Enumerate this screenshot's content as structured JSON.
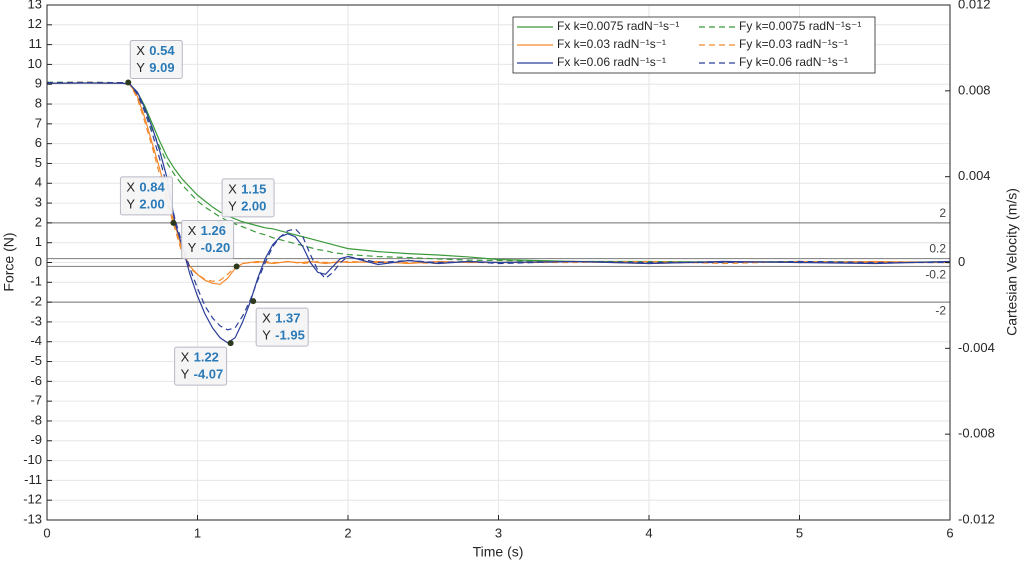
{
  "chart_data": {
    "type": "line",
    "xlabel": "Time (s)",
    "ylabel": "Force (N)",
    "y2label": "Cartesian Velocity (m/s)",
    "grid": true,
    "legend_position": "top-right",
    "xlim": [
      0,
      6
    ],
    "xticks": [
      0,
      1,
      2,
      3,
      4,
      5,
      6
    ],
    "ylim": [
      -13,
      13
    ],
    "yticks": [
      -13,
      -12,
      -11,
      -10,
      -9,
      -8,
      -7,
      -6,
      -5,
      -4,
      -3,
      -2,
      -1,
      0,
      1,
      2,
      3,
      4,
      5,
      6,
      7,
      8,
      9,
      10,
      11,
      12,
      13
    ],
    "y2lim": [
      -0.012,
      0.012
    ],
    "y2ticks": [
      -0.012,
      -0.008,
      -0.004,
      0,
      0.004,
      0.008,
      0.012
    ],
    "reference_lines": [
      2,
      0.2,
      -0.2,
      -2
    ],
    "datatip_x_text": "X",
    "datatip_y_text": "Y",
    "datatips": [
      {
        "x": 0.54,
        "y": 9.09
      },
      {
        "x": 0.84,
        "y": {
          "value": 2,
          "label": "2.00"
        }
      },
      {
        "x": 1.15,
        "y": {
          "value": 2,
          "label": "2.00"
        }
      },
      {
        "x": 1.26,
        "y": {
          "value": -0.2,
          "label": "-0.20"
        }
      },
      {
        "x": 1.37,
        "y": -1.95
      },
      {
        "x": 1.22,
        "y": -4.07
      }
    ],
    "x": [
      0,
      0.25,
      0.5,
      0.55,
      0.6,
      0.65,
      0.7,
      0.75,
      0.8,
      0.85,
      0.9,
      0.95,
      1.0,
      1.05,
      1.1,
      1.15,
      1.2,
      1.25,
      1.3,
      1.35,
      1.4,
      1.45,
      1.5,
      1.55,
      1.6,
      1.65,
      1.7,
      1.75,
      1.8,
      1.85,
      1.9,
      1.95,
      2.0,
      2.2,
      2.4,
      2.6,
      2.8,
      3.0,
      3.5,
      4,
      4.5,
      5,
      5.5,
      6
    ],
    "series": [
      {
        "name": "Fx k=0.0075 radN⁻¹s⁻¹",
        "color": "#3a9a3a",
        "dashed": false,
        "values": [
          9.05,
          9.07,
          9.06,
          9.0,
          8.6,
          7.9,
          7.0,
          6.1,
          5.3,
          4.7,
          4.2,
          3.8,
          3.4,
          3.1,
          2.8,
          2.55,
          2.35,
          2.2,
          2.05,
          1.95,
          1.85,
          1.75,
          1.7,
          1.6,
          1.5,
          1.4,
          1.3,
          1.2,
          1.1,
          1.0,
          0.9,
          0.8,
          0.7,
          0.55,
          0.45,
          0.38,
          0.28,
          0.15,
          0.05,
          0.05,
          0.02,
          0.05,
          0.02,
          0.03
        ]
      },
      {
        "name": "Fy k=0.0075 radN⁻¹s⁻¹",
        "color": "#3a9a3a",
        "dashed": true,
        "values": [
          9.1,
          9.1,
          9.08,
          9.02,
          8.5,
          7.7,
          6.7,
          5.8,
          5.0,
          4.4,
          3.9,
          3.5,
          3.1,
          2.8,
          2.55,
          2.3,
          2.1,
          1.95,
          1.8,
          1.65,
          1.5,
          1.4,
          1.25,
          1.15,
          1.05,
          0.95,
          0.85,
          0.75,
          0.65,
          0.6,
          0.5,
          0.45,
          0.4,
          0.3,
          0.25,
          0.18,
          0.12,
          0.1,
          0.05,
          0.0,
          0.05,
          0.0,
          0.03,
          0.0
        ]
      },
      {
        "name": "Fx k=0.03 radN⁻¹s⁻¹",
        "color": "#f58a2c",
        "dashed": false,
        "values": [
          9.05,
          9.06,
          9.05,
          9.0,
          8.4,
          7.3,
          6.0,
          4.7,
          3.2,
          1.9,
          0.6,
          -0.2,
          -0.6,
          -0.9,
          -1.05,
          -1.1,
          -0.8,
          -0.3,
          -0.05,
          0.0,
          0.05,
          0.0,
          -0.05,
          0.0,
          0.05,
          0.0,
          0.0,
          0.05,
          0.0,
          -0.05,
          0.0,
          0.05,
          0.0,
          0.05,
          -0.05,
          0.05,
          0.0,
          0.0,
          0.05,
          -0.05,
          0.05,
          0.0,
          0.05,
          0.0
        ]
      },
      {
        "name": "Fy k=0.03 radN⁻¹s⁻¹",
        "color": "#f58a2c",
        "dashed": true,
        "values": [
          9.08,
          9.1,
          9.07,
          9.0,
          8.3,
          7.1,
          5.8,
          4.4,
          3.0,
          1.7,
          0.4,
          -0.3,
          -0.6,
          -0.85,
          -0.95,
          -0.9,
          -0.6,
          -0.25,
          -0.05,
          0.0,
          0.0,
          0.05,
          0.0,
          0.0,
          0.05,
          0.0,
          -0.05,
          0.0,
          0.05,
          0.0,
          0.0,
          0.0,
          0.05,
          0.0,
          0.0,
          -0.05,
          0.05,
          0.0,
          0.0,
          0.05,
          -0.05,
          0.05,
          0.0,
          0.0
        ]
      },
      {
        "name": "Fx k=0.06 radN⁻¹s⁻¹",
        "color": "#2b3e9a",
        "dashed": false,
        "values": [
          9.05,
          9.06,
          9.05,
          9.0,
          8.6,
          7.8,
          6.8,
          5.6,
          4.2,
          2.0,
          0.8,
          -0.6,
          -1.7,
          -2.6,
          -3.3,
          -3.8,
          -4.05,
          -3.8,
          -3.0,
          -2.0,
          -0.8,
          0.2,
          0.9,
          1.3,
          1.45,
          1.3,
          0.8,
          0.0,
          -0.5,
          -0.6,
          -0.2,
          0.2,
          0.3,
          -0.1,
          0.1,
          -0.05,
          0.05,
          0.0,
          0.05,
          -0.05,
          0.05,
          0.0,
          -0.05,
          0.05
        ]
      },
      {
        "name": "Fy k=0.06 radN⁻¹s⁻¹",
        "color": "#2b3e9a",
        "dashed": true,
        "values": [
          9.08,
          9.09,
          9.08,
          9.02,
          8.5,
          7.6,
          6.5,
          5.2,
          3.8,
          2.2,
          0.9,
          -0.3,
          -1.3,
          -2.2,
          -2.8,
          -3.2,
          -3.4,
          -3.3,
          -2.7,
          -1.9,
          -0.9,
          0.0,
          0.8,
          1.3,
          1.6,
          1.7,
          1.3,
          0.4,
          -0.4,
          -0.8,
          -0.5,
          0.0,
          0.3,
          0.0,
          0.1,
          0.0,
          0.05,
          -0.05,
          0.05,
          0.0,
          0.0,
          0.05,
          0.0,
          0.0
        ]
      }
    ]
  }
}
